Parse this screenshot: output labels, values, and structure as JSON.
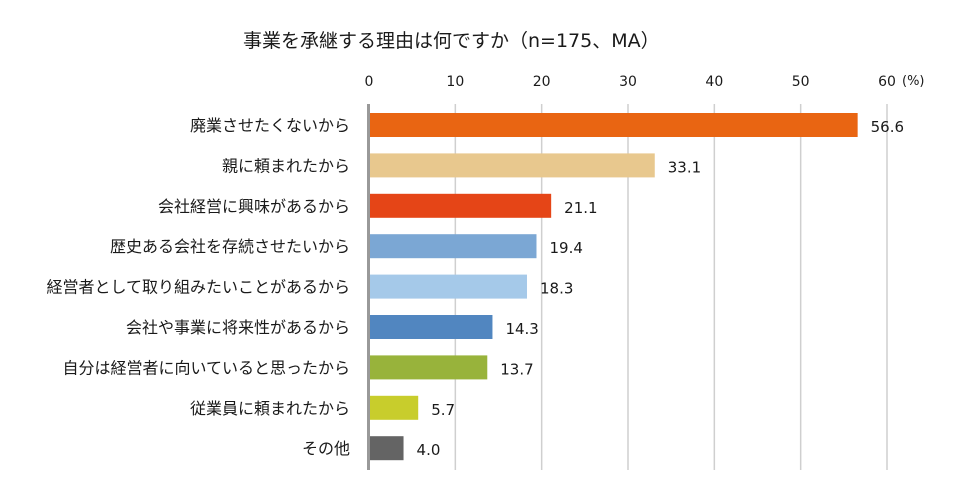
{
  "chart_data": {
    "type": "bar",
    "orientation": "horizontal",
    "title": "事業を承継する理由は何ですか（n=175、MA）",
    "unit_label": "(%)",
    "xlim": [
      0,
      60
    ],
    "ticks": [
      0,
      10,
      20,
      30,
      40,
      50,
      60
    ],
    "grid": true,
    "categories": [
      "廃業させたくないから",
      "親に頼まれたから",
      "会社経営に興味があるから",
      "歴史ある会社を存続させたいから",
      "経営者として取り組みたいことがあるから",
      "会社や事業に将来性があるから",
      "自分は経営者に向いていると思ったから",
      "従業員に頼まれたから",
      "その他"
    ],
    "values": [
      56.6,
      33.1,
      21.1,
      19.4,
      18.3,
      14.3,
      13.7,
      5.7,
      4.0
    ],
    "value_labels": [
      "56.6",
      "33.1",
      "21.1",
      "19.4",
      "18.3",
      "14.3",
      "13.7",
      "5.7",
      "4.0"
    ],
    "colors": [
      "#E96512",
      "#E8C88E",
      "#E54517",
      "#7BA7D4",
      "#A5C9E9",
      "#5186C0",
      "#98B33B",
      "#C8CD2C",
      "#646464"
    ]
  }
}
